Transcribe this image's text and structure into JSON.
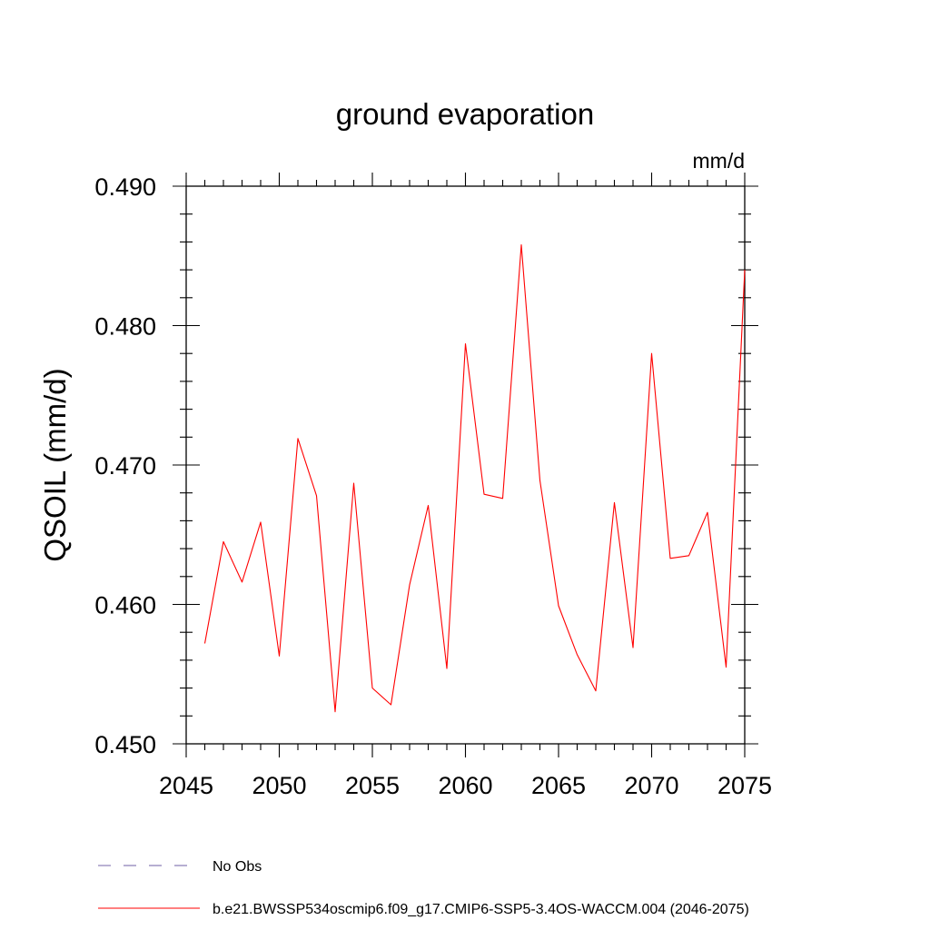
{
  "chart_data": {
    "type": "line",
    "title": "ground evaporation",
    "units_label": "mm/d",
    "ylabel": "QSOIL  (mm/d)",
    "xlabel": "",
    "xlim": [
      2045,
      2075
    ],
    "ylim": [
      0.45,
      0.49
    ],
    "x_ticks": [
      2045,
      2050,
      2055,
      2060,
      2065,
      2070,
      2075
    ],
    "y_ticks": [
      "0.450",
      "0.460",
      "0.470",
      "0.480",
      "0.490"
    ],
    "series": [
      {
        "name": "b.e21.BWSSP534oscmip6.f09_g17.CMIP6-SSP5-3.4OS-WACCM.004 (2046-2075)",
        "color": "#ff0000",
        "x": [
          2046,
          2047,
          2048,
          2049,
          2050,
          2051,
          2052,
          2053,
          2054,
          2055,
          2056,
          2057,
          2058,
          2059,
          2060,
          2061,
          2062,
          2063,
          2064,
          2065,
          2066,
          2067,
          2068,
          2069,
          2070,
          2071,
          2072,
          2073,
          2074,
          2075
        ],
        "values": [
          0.4572,
          0.4645,
          0.4616,
          0.4659,
          0.4563,
          0.4719,
          0.4678,
          0.4523,
          0.4687,
          0.454,
          0.4528,
          0.4614,
          0.4671,
          0.4554,
          0.4787,
          0.4679,
          0.4676,
          0.4858,
          0.4689,
          0.4599,
          0.4564,
          0.4538,
          0.4673,
          0.4569,
          0.478,
          0.4633,
          0.4635,
          0.4666,
          0.4555,
          0.484
        ]
      }
    ],
    "legend": [
      {
        "label": "No Obs",
        "style": "dashed",
        "color": "#8c7fb8"
      },
      {
        "label": "b.e21.BWSSP534oscmip6.f09_g17.CMIP6-SSP5-3.4OS-WACCM.004 (2046-2075)",
        "style": "solid",
        "color": "#ff0000"
      }
    ]
  }
}
